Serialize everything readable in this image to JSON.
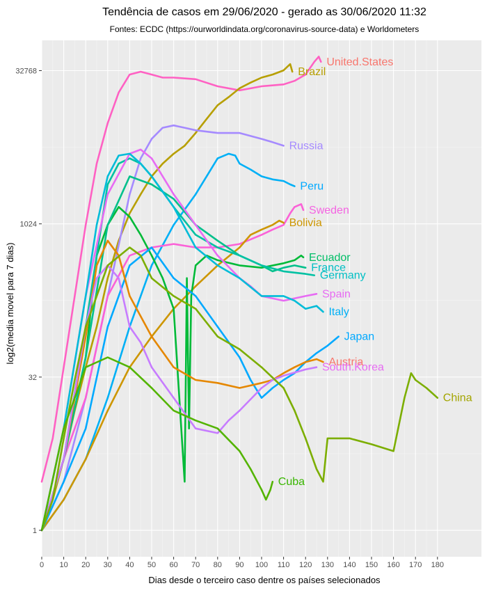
{
  "chart_data": {
    "type": "line",
    "title": "Tendência de casos em 29/06/2020 - gerado as 30/06/2020 11:32",
    "subtitle": "Fontes: ECDC (https://ourworldindata.org/coronavirus-source-data) e Worldometers",
    "xlabel": "Dias desde o terceiro caso dentre os países selecionados",
    "ylabel": "log2(media movel para 7 dias)",
    "x_scale": "linear",
    "y_scale": "log2",
    "xlim": [
      0,
      200
    ],
    "ylim": [
      0.55,
      65000
    ],
    "x_ticks": [
      0,
      10,
      20,
      30,
      40,
      50,
      60,
      70,
      80,
      90,
      100,
      110,
      120,
      130,
      140,
      150,
      160,
      170,
      180
    ],
    "y_ticks": [
      1,
      32,
      1024,
      32768
    ],
    "y_tick_labels": [
      "1",
      "32",
      "1024",
      "32768"
    ],
    "grid": true,
    "legend": "labels at line ends",
    "background": "#ebebeb",
    "series": [
      {
        "name": "United.States",
        "color": "#ff61c3",
        "label_color": "#f8766d",
        "x": [
          0,
          5,
          10,
          15,
          20,
          25,
          30,
          35,
          40,
          45,
          50,
          55,
          60,
          70,
          80,
          90,
          100,
          110,
          115,
          120,
          124,
          126,
          127
        ],
        "y": [
          3,
          8,
          40,
          200,
          1000,
          4000,
          10000,
          20000,
          30000,
          32000,
          30000,
          28000,
          28000,
          27000,
          23000,
          21000,
          23000,
          24000,
          26000,
          30000,
          40000,
          45000,
          40000
        ]
      },
      {
        "name": "Brazil",
        "color": "#b79f00",
        "x": [
          0,
          5,
          10,
          15,
          20,
          25,
          30,
          35,
          40,
          45,
          50,
          55,
          60,
          65,
          70,
          75,
          80,
          85,
          90,
          95,
          100,
          105,
          110,
          113,
          114
        ],
        "y": [
          1,
          2,
          5,
          15,
          40,
          100,
          300,
          700,
          1300,
          2000,
          3000,
          4000,
          5000,
          6000,
          8000,
          11000,
          15000,
          18000,
          22000,
          25000,
          28000,
          30000,
          33000,
          38000,
          32000
        ]
      },
      {
        "name": "Russia",
        "color": "#a58aff",
        "x": [
          0,
          10,
          20,
          30,
          40,
          45,
          50,
          55,
          60,
          65,
          70,
          80,
          90,
          100,
          105,
          110
        ],
        "y": [
          1,
          3,
          20,
          200,
          2000,
          4500,
          7000,
          9000,
          9500,
          9000,
          8500,
          8000,
          8000,
          7000,
          6500,
          6000
        ]
      },
      {
        "name": "Peru",
        "color": "#00b0f6",
        "label_color": "#00a9ff",
        "x": [
          0,
          10,
          20,
          30,
          40,
          50,
          60,
          70,
          75,
          80,
          85,
          88,
          90,
          95,
          100,
          105,
          110,
          113,
          115
        ],
        "y": [
          1,
          2,
          5,
          20,
          100,
          400,
          1000,
          2000,
          3000,
          4500,
          5000,
          4800,
          4000,
          3500,
          3000,
          2800,
          2700,
          2500,
          2400
        ]
      },
      {
        "name": "Sweden",
        "color": "#fb61d7",
        "label_color": "#f564e3",
        "x": [
          0,
          10,
          20,
          30,
          40,
          50,
          60,
          70,
          80,
          90,
          100,
          105,
          110,
          113,
          115,
          118,
          119
        ],
        "y": [
          1,
          5,
          20,
          200,
          500,
          600,
          650,
          600,
          600,
          650,
          800,
          900,
          1000,
          1300,
          1500,
          1600,
          1400
        ]
      },
      {
        "name": "Bolivia",
        "color": "#cd9600",
        "x": [
          0,
          10,
          20,
          30,
          40,
          50,
          60,
          70,
          80,
          90,
          95,
          100,
          105,
          108,
          110
        ],
        "y": [
          1,
          2,
          5,
          15,
          40,
          80,
          150,
          250,
          400,
          600,
          800,
          900,
          1000,
          1100,
          1050
        ]
      },
      {
        "name": "Ecuador",
        "color": "#00ba38",
        "label_color": "#00be67",
        "x": [
          0,
          10,
          20,
          25,
          30,
          35,
          40,
          45,
          50,
          55,
          60,
          65,
          66,
          67,
          68,
          70,
          75,
          80,
          90,
          100,
          110,
          115,
          118,
          119
        ],
        "y": [
          1,
          5,
          50,
          500,
          1000,
          1500,
          1200,
          800,
          500,
          300,
          150,
          3,
          300,
          10,
          200,
          400,
          500,
          450,
          400,
          380,
          420,
          450,
          500,
          480
        ]
      },
      {
        "name": "France",
        "color": "#00c08b",
        "label_color": "#00bfc4",
        "x": [
          0,
          10,
          20,
          30,
          40,
          50,
          60,
          70,
          80,
          90,
          100,
          105,
          110,
          115,
          120
        ],
        "y": [
          1,
          5,
          50,
          1000,
          3000,
          2500,
          1800,
          1000,
          700,
          500,
          400,
          350,
          380,
          400,
          380
        ]
      },
      {
        "name": "Germany",
        "color": "#00c1a3",
        "label_color": "#00bfc4",
        "x": [
          0,
          10,
          20,
          30,
          35,
          40,
          45,
          50,
          60,
          70,
          80,
          90,
          100,
          110,
          120,
          124
        ],
        "y": [
          1,
          5,
          100,
          2500,
          4000,
          4500,
          4000,
          3000,
          1500,
          800,
          600,
          500,
          400,
          350,
          330,
          320
        ]
      },
      {
        "name": "Spain",
        "color": "#e76bf3",
        "x": [
          0,
          10,
          20,
          30,
          40,
          45,
          50,
          60,
          70,
          80,
          90,
          95,
          100,
          110,
          120,
          125
        ],
        "y": [
          1,
          10,
          200,
          2000,
          5000,
          5500,
          4500,
          2000,
          1000,
          500,
          300,
          250,
          200,
          180,
          200,
          210
        ]
      },
      {
        "name": "Italy",
        "color": "#00bcd8",
        "label_color": "#00b0f6",
        "x": [
          0,
          10,
          20,
          25,
          30,
          35,
          40,
          45,
          50,
          60,
          70,
          80,
          90,
          100,
          110,
          115,
          120,
          125,
          128
        ],
        "y": [
          1,
          10,
          200,
          1000,
          3000,
          4800,
          5000,
          4000,
          3000,
          1500,
          600,
          400,
          300,
          200,
          200,
          180,
          150,
          160,
          140
        ]
      },
      {
        "name": "Japan",
        "color": "#00a9ff",
        "x": [
          0,
          10,
          20,
          30,
          40,
          50,
          60,
          70,
          80,
          90,
          95,
          100,
          105,
          110,
          115,
          120,
          125,
          130,
          135
        ],
        "y": [
          1,
          3,
          10,
          100,
          400,
          600,
          300,
          200,
          100,
          50,
          30,
          20,
          25,
          30,
          35,
          45,
          55,
          65,
          80
        ]
      },
      {
        "name": "Austria",
        "color": "#e58700",
        "label_color": "#f8766d",
        "x": [
          0,
          10,
          20,
          25,
          30,
          35,
          40,
          50,
          60,
          70,
          80,
          90,
          100,
          105,
          110,
          115,
          120,
          125,
          128
        ],
        "y": [
          1,
          5,
          80,
          400,
          700,
          500,
          200,
          80,
          40,
          30,
          28,
          25,
          28,
          30,
          35,
          40,
          45,
          48,
          45
        ]
      },
      {
        "name": "South.Korea",
        "color": "#c77cff",
        "label_color": "#e76bf3",
        "x": [
          0,
          10,
          20,
          25,
          30,
          35,
          40,
          45,
          50,
          60,
          70,
          80,
          85,
          90,
          100,
          105,
          110,
          120,
          125
        ],
        "y": [
          1,
          5,
          100,
          300,
          400,
          300,
          100,
          70,
          40,
          20,
          10,
          9,
          12,
          15,
          25,
          30,
          33,
          38,
          40
        ]
      },
      {
        "name": "China",
        "color": "#7cae00",
        "label_color": "#a3a500",
        "x": [
          0,
          5,
          10,
          15,
          20,
          30,
          40,
          45,
          50,
          60,
          70,
          80,
          90,
          100,
          110,
          115,
          120,
          125,
          128,
          130,
          140,
          150,
          160,
          165,
          168,
          170,
          175,
          180
        ],
        "y": [
          1,
          2,
          8,
          30,
          100,
          400,
          600,
          500,
          300,
          200,
          150,
          80,
          60,
          40,
          25,
          15,
          8,
          4,
          3,
          8,
          8,
          7,
          6,
          20,
          35,
          30,
          25,
          20
        ]
      },
      {
        "name": "Cuba",
        "color": "#53b400",
        "label_color": "#39b600",
        "x": [
          0,
          10,
          20,
          30,
          40,
          50,
          60,
          70,
          80,
          90,
          95,
          100,
          102,
          104,
          105
        ],
        "y": [
          1,
          10,
          40,
          50,
          40,
          25,
          15,
          12,
          10,
          6,
          4,
          2.5,
          2,
          2.5,
          3
        ]
      }
    ]
  }
}
